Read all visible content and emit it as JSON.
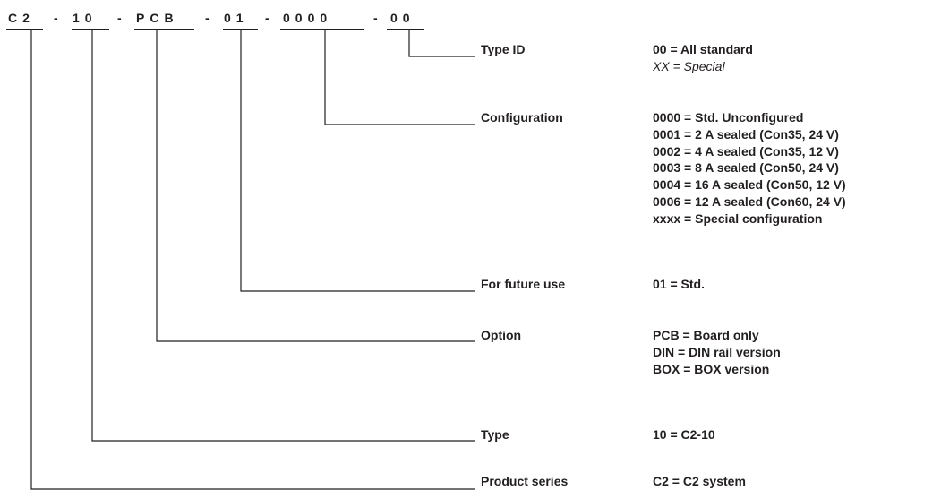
{
  "code": {
    "segments": [
      "C2",
      "10",
      "PCB",
      "01",
      "0000",
      "00"
    ],
    "separator": "-"
  },
  "fields": [
    {
      "label": "Type ID",
      "values": [
        "00 = All standard",
        "XX = Special"
      ]
    },
    {
      "label": "Configuration",
      "values": [
        "0000 = Std. Unconfigured",
        "0001 = 2 A sealed (Con35, 24 V)",
        "0002 = 4 A sealed (Con35, 12 V)",
        "0003 = 8 A sealed (Con50, 24 V)",
        "0004 = 16 A sealed (Con50, 12 V)",
        "0006 = 12 A sealed (Con60, 24 V)",
        "xxxx = Special configuration"
      ]
    },
    {
      "label": "For future use",
      "values": [
        "01 = Std."
      ]
    },
    {
      "label": "Option",
      "values": [
        "PCB = Board only",
        "DIN = DIN rail version",
        "BOX = BOX version"
      ]
    },
    {
      "label": "Type",
      "values": [
        "10 = C2-10"
      ]
    },
    {
      "label": "Product series",
      "values": [
        "C2 = C2 system"
      ]
    }
  ]
}
